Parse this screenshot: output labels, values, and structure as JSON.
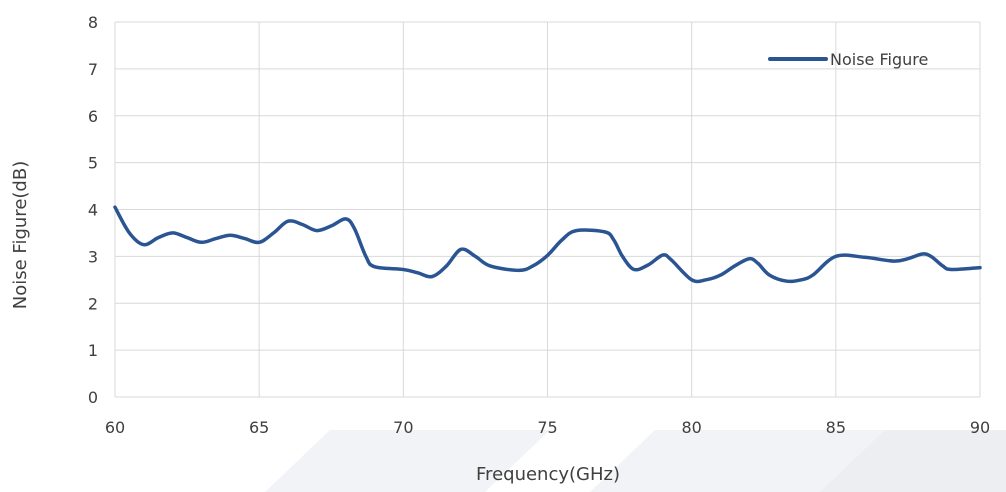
{
  "chart_data": {
    "type": "line",
    "title": "",
    "xlabel": "Frequency(GHz)",
    "ylabel": "Noise Figure(dB)",
    "xlim": [
      60,
      90
    ],
    "ylim": [
      0,
      8
    ],
    "x_ticks": [
      "60",
      "65",
      "70",
      "75",
      "80",
      "85",
      "90"
    ],
    "y_ticks": [
      "0",
      "1",
      "2",
      "3",
      "4",
      "5",
      "6",
      "7",
      "8"
    ],
    "grid": true,
    "legend_position": "top-right",
    "series": [
      {
        "name": "Noise Figure",
        "color": "#2a5592",
        "x": [
          60,
          60.5,
          61,
          61.5,
          62,
          62.5,
          63,
          63.5,
          64,
          64.5,
          65,
          65.5,
          66,
          66.5,
          67,
          67.5,
          68,
          68.3,
          68.7,
          69,
          70,
          70.5,
          71,
          71.5,
          72,
          72.5,
          73,
          74,
          74.5,
          75,
          75.5,
          76,
          77,
          77.3,
          77.6,
          78,
          78.5,
          79,
          79.3,
          80,
          80.5,
          81,
          81.5,
          82,
          82.3,
          82.7,
          83.3,
          83.8,
          84.2,
          85,
          86,
          87,
          87.5,
          88,
          88.3,
          88.7,
          89,
          90
        ],
        "y": [
          4.05,
          3.5,
          3.25,
          3.4,
          3.5,
          3.4,
          3.3,
          3.38,
          3.45,
          3.38,
          3.3,
          3.5,
          3.75,
          3.68,
          3.55,
          3.65,
          3.8,
          3.6,
          3.0,
          2.78,
          2.72,
          2.65,
          2.57,
          2.8,
          3.15,
          3.0,
          2.8,
          2.7,
          2.8,
          3.02,
          3.35,
          3.55,
          3.52,
          3.35,
          3.0,
          2.72,
          2.82,
          3.03,
          2.92,
          2.5,
          2.5,
          2.6,
          2.8,
          2.95,
          2.85,
          2.6,
          2.47,
          2.5,
          2.6,
          3.0,
          2.98,
          2.9,
          2.95,
          3.05,
          3.0,
          2.8,
          2.72,
          2.76
        ]
      }
    ]
  }
}
